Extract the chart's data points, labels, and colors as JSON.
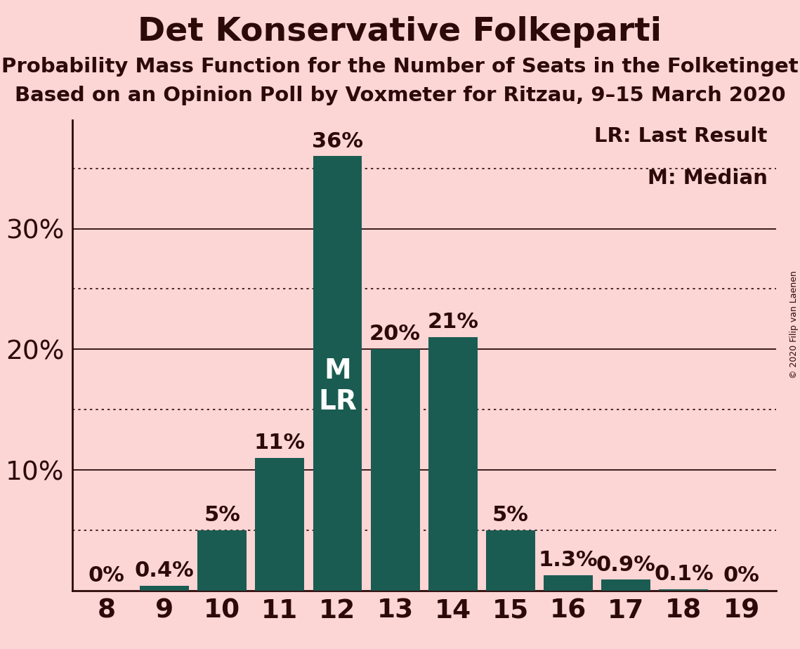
{
  "seats": [
    8,
    9,
    10,
    11,
    12,
    13,
    14,
    15,
    16,
    17,
    18,
    19
  ],
  "probabilities": [
    0.0,
    0.4,
    5.0,
    11.0,
    36.0,
    20.0,
    21.0,
    5.0,
    1.3,
    0.9,
    0.1,
    0.0
  ],
  "bar_color": "#1a5c52",
  "background_color": "#fcd5d5",
  "title": "Det Konservative Folkeparti",
  "subtitle1": "Probability Mass Function for the Number of Seats in the Folketinget",
  "subtitle2": "Based on an Opinion Poll by Voxmeter for Ritzau, 9–15 March 2020",
  "yticks": [
    10,
    20,
    30
  ],
  "dotted_lines": [
    5,
    15,
    25,
    35
  ],
  "solid_lines": [
    10,
    20,
    30
  ],
  "median_seat": 12,
  "last_result_seat": 12,
  "bar_labels": [
    "0%",
    "0.4%",
    "5%",
    "11%",
    "36%",
    "20%",
    "21%",
    "5%",
    "1.3%",
    "0.9%",
    "0.1%",
    "0%"
  ],
  "text_color": "#2d0a0a",
  "bar_text_color_inside": "#ffffff",
  "legend_lr": "LR: Last Result",
  "legend_m": "M: Median",
  "copyright": "© 2020 Filip van Laenen",
  "title_fontsize": 34,
  "subtitle_fontsize": 21,
  "label_fontsize": 22,
  "tick_fontsize": 27,
  "legend_fontsize": 21,
  "ylim": [
    0,
    39
  ],
  "solid_line_color": "#2d0a0a",
  "dotted_line_color": "#2d0a0a"
}
